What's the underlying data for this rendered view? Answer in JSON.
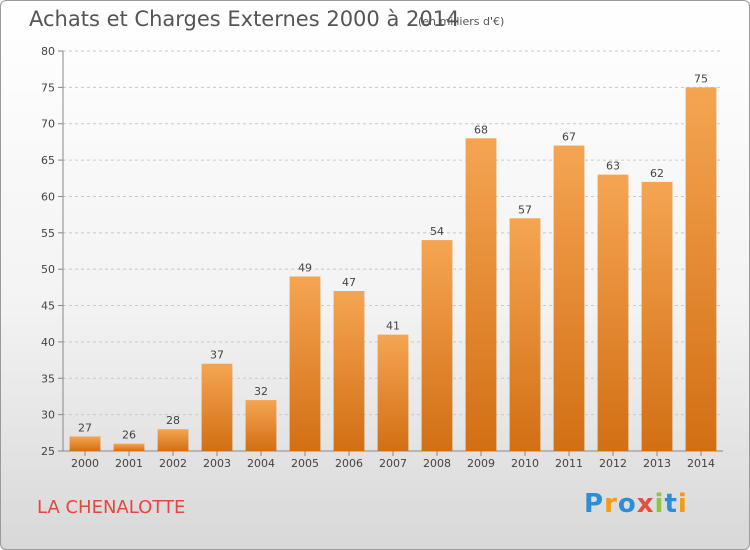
{
  "header": {
    "title": "Achats et Charges Externes 2000 à 2014",
    "subtitle": "(en milliers d'€)"
  },
  "footer": {
    "place_name": "LA CHENALOTTE",
    "logo": {
      "text": "Proxiti",
      "letters": [
        {
          "char": "P",
          "color": "#2a8fd6"
        },
        {
          "char": "r",
          "color": "#f39c12"
        },
        {
          "char": "o",
          "color": "#2a8fd6"
        },
        {
          "char": "x",
          "color": "#e74c3c"
        },
        {
          "char": "i",
          "color": "#8cc63f"
        },
        {
          "char": "t",
          "color": "#2a8fd6"
        },
        {
          "char": "i",
          "color": "#f39c12"
        }
      ]
    }
  },
  "colors": {
    "bar_top": "#f5a552",
    "bar_bottom": "#d26f14",
    "place_name": "#e8453c"
  },
  "chart_data": {
    "type": "bar",
    "title": "Achats et Charges Externes 2000 à 2014",
    "subtitle": "(en milliers d'€)",
    "categories": [
      "2000",
      "2001",
      "2002",
      "2003",
      "2004",
      "2005",
      "2006",
      "2007",
      "2008",
      "2009",
      "2010",
      "2011",
      "2012",
      "2013",
      "2014"
    ],
    "values": [
      27,
      26,
      28,
      37,
      32,
      49,
      47,
      41,
      54,
      68,
      57,
      67,
      63,
      62,
      75
    ],
    "ylim": [
      25,
      80
    ],
    "yticks": [
      25,
      30,
      35,
      40,
      45,
      50,
      55,
      60,
      65,
      70,
      75,
      80
    ],
    "grid": "horizontal dashed",
    "data_labels": true
  }
}
